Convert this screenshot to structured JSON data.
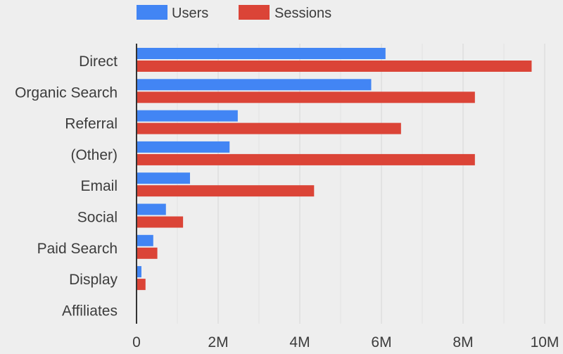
{
  "chart_data": {
    "type": "bar",
    "orientation": "horizontal",
    "categories": [
      "Direct",
      "Organic Search",
      "Referral",
      "(Other)",
      "Email",
      "Social",
      "Paid Search",
      "Display",
      "Affiliates"
    ],
    "series": [
      {
        "name": "Users",
        "color": "#4285f4",
        "values": [
          6100000,
          5750000,
          2480000,
          2280000,
          1310000,
          720000,
          410000,
          120000,
          0
        ]
      },
      {
        "name": "Sessions",
        "color": "#db4437",
        "values": [
          9680000,
          8290000,
          6480000,
          8290000,
          4350000,
          1140000,
          510000,
          220000,
          0
        ]
      }
    ],
    "xlim": [
      0,
      10000000
    ],
    "xticks": [
      0,
      2000000,
      4000000,
      6000000,
      8000000,
      10000000
    ],
    "xtick_labels": [
      "0",
      "2M",
      "4M",
      "6M",
      "8M",
      "10M"
    ],
    "title": "",
    "xlabel": "",
    "ylabel": "",
    "grid": true,
    "legend_position": "top-left",
    "colors": {
      "background": "#eeeeee",
      "gridline": "#d6d6d6",
      "axis": "#333333",
      "text": "#3c3c3c"
    }
  }
}
